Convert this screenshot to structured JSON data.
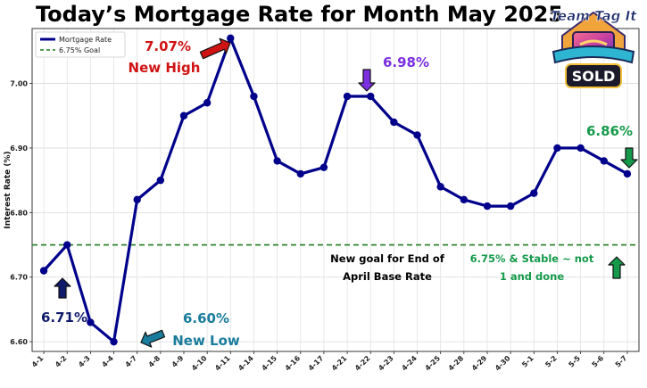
{
  "title": "Today’s Mortgage Rate for Month May 2025",
  "colors": {
    "line": "#00008b",
    "goal": "#1f7a1f",
    "red": "#d01414",
    "purple": "#7b2fe0",
    "green": "#149a4a",
    "teal": "#1a7c9c",
    "navy": "#0f1b6a"
  },
  "legend": {
    "series": "Mortgage Rate",
    "goal": "6.75% Goal",
    "placement": "top-left"
  },
  "logo": {
    "top_text": "Team Tag It",
    "bottom_text": "SOLD"
  },
  "annotations": [
    {
      "id": "high-value",
      "text": "7.07%",
      "color_key": "red"
    },
    {
      "id": "high-label",
      "text": "New High",
      "color_key": "red"
    },
    {
      "id": "peak-value",
      "text": "6.98%",
      "color_key": "purple"
    },
    {
      "id": "latest-value",
      "text": "6.86%",
      "color_key": "green"
    },
    {
      "id": "low-start-value",
      "text": "6.71%",
      "color_key": "navy"
    },
    {
      "id": "low-value",
      "text": "6.60%",
      "color_key": "teal"
    },
    {
      "id": "low-label",
      "text": "New Low",
      "color_key": "teal"
    },
    {
      "id": "goal-note-1",
      "text": "New goal for End of",
      "color_key": "black"
    },
    {
      "id": "goal-note-2",
      "text": "April Base Rate",
      "color_key": "black"
    },
    {
      "id": "stable-note-1",
      "text": "6.75% & Stable ~ not",
      "color_key": "green"
    },
    {
      "id": "stable-note-2",
      "text": "1 and done",
      "color_key": "green"
    }
  ],
  "chart_data": {
    "type": "line",
    "title": "Today’s Mortgage Rate for Month May 2025",
    "xlabel": "",
    "ylabel": "Interest Rate (%)",
    "categories": [
      "4-1",
      "4-2",
      "4-3",
      "4-4",
      "4-7",
      "4-8",
      "4-9",
      "4-10",
      "4-11",
      "4-14",
      "4-15",
      "4-16",
      "4-17",
      "4-21",
      "4-22",
      "4-23",
      "4-24",
      "4-25",
      "4-28",
      "4-29",
      "4-30",
      "5-1",
      "5-2",
      "5-5",
      "5-6",
      "5-7"
    ],
    "series": [
      {
        "name": "Mortgage Rate",
        "values": [
          6.71,
          6.75,
          6.63,
          6.6,
          6.82,
          6.85,
          6.95,
          6.97,
          7.07,
          6.98,
          6.88,
          6.86,
          6.87,
          6.98,
          6.98,
          6.94,
          6.92,
          6.84,
          6.82,
          6.81,
          6.81,
          6.83,
          6.9,
          6.9,
          6.88,
          6.86
        ]
      }
    ],
    "goal_line": {
      "name": "6.75% Goal",
      "value": 6.75
    },
    "yticks": [
      6.6,
      6.7,
      6.8,
      6.9,
      7.0
    ],
    "ylim": [
      6.585,
      7.085
    ],
    "grid": true,
    "legend": "top-left"
  }
}
